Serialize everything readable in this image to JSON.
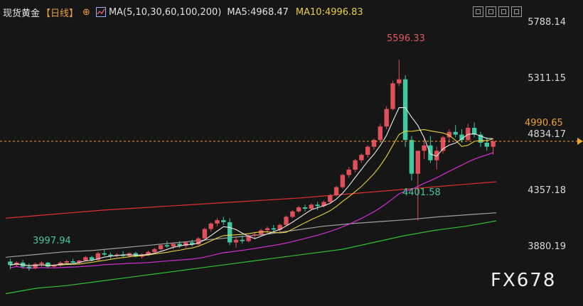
{
  "header": {
    "symbol": "现货黄金",
    "period": "【日线】",
    "ma_label": "MA(5,10,30,60,100,200)",
    "ma5": "MA5:4968.47",
    "ma10": "MA10:4996.83"
  },
  "current_price": "4990.65",
  "watermark": "FX678",
  "colors": {
    "up": "#e0505a",
    "down": "#40c8a0",
    "ma5": "#e8e8e8",
    "ma10": "#e8d040",
    "ma30": "#d030d0",
    "ma60": "#30c030",
    "ma100": "#a0a0a0",
    "ma200": "#e03030",
    "price_line": "#f0a030"
  },
  "chart_data": {
    "type": "candlestick",
    "y_ticks": [
      "5788.14",
      "5311.15",
      "4834.17",
      "4357.18",
      "3880.19"
    ],
    "ylim": [
      3800,
      5870
    ],
    "annotations": {
      "high": "5596.33",
      "low_recent": "4401.58",
      "low_early": "3997.94"
    },
    "last_price": 4990.65,
    "candles": [
      [
        4098,
        4118,
        4040,
        4072
      ],
      [
        4072,
        4100,
        4060,
        4090
      ],
      [
        4090,
        4110,
        4045,
        4060
      ],
      [
        4060,
        4085,
        4030,
        4050
      ],
      [
        4050,
        4090,
        4040,
        4080
      ],
      [
        4080,
        4100,
        4060,
        4090
      ],
      [
        4090,
        4095,
        4050,
        4060
      ],
      [
        4060,
        4080,
        4050,
        4070
      ],
      [
        4070,
        4100,
        4060,
        4090
      ],
      [
        4090,
        4110,
        4080,
        4100
      ],
      [
        4100,
        4118,
        4080,
        4090
      ],
      [
        4090,
        4110,
        4080,
        4105
      ],
      [
        4105,
        4140,
        4100,
        4130
      ],
      [
        4130,
        4140,
        4100,
        4110
      ],
      [
        4110,
        4170,
        4100,
        4160
      ],
      [
        4160,
        4185,
        4140,
        4150
      ],
      [
        4150,
        4165,
        4120,
        4140
      ],
      [
        4140,
        4160,
        4130,
        4150
      ],
      [
        4150,
        4175,
        4130,
        4140
      ],
      [
        4140,
        4165,
        4130,
        4160
      ],
      [
        4160,
        4170,
        4130,
        4135
      ],
      [
        4135,
        4160,
        4120,
        4150
      ],
      [
        4150,
        4180,
        4140,
        4170
      ],
      [
        4170,
        4200,
        4160,
        4190
      ],
      [
        4190,
        4230,
        4180,
        4220
      ],
      [
        4220,
        4250,
        4200,
        4210
      ],
      [
        4210,
        4240,
        4190,
        4230
      ],
      [
        4230,
        4250,
        4200,
        4215
      ],
      [
        4215,
        4245,
        4200,
        4240
      ],
      [
        4240,
        4260,
        4210,
        4225
      ],
      [
        4225,
        4280,
        4220,
        4270
      ],
      [
        4270,
        4350,
        4260,
        4340
      ],
      [
        4340,
        4390,
        4320,
        4380
      ],
      [
        4380,
        4420,
        4360,
        4405
      ],
      [
        4405,
        4430,
        4370,
        4390
      ],
      [
        4390,
        4420,
        4220,
        4240
      ],
      [
        4240,
        4280,
        4200,
        4260
      ],
      [
        4260,
        4290,
        4230,
        4250
      ],
      [
        4250,
        4300,
        4240,
        4290
      ],
      [
        4290,
        4320,
        4270,
        4300
      ],
      [
        4300,
        4340,
        4290,
        4330
      ],
      [
        4330,
        4360,
        4300,
        4345
      ],
      [
        4345,
        4370,
        4320,
        4335
      ],
      [
        4335,
        4380,
        4320,
        4370
      ],
      [
        4370,
        4440,
        4360,
        4430
      ],
      [
        4430,
        4480,
        4420,
        4470
      ],
      [
        4470,
        4510,
        4460,
        4500
      ],
      [
        4500,
        4520,
        4470,
        4490
      ],
      [
        4490,
        4530,
        4480,
        4520
      ],
      [
        4520,
        4540,
        4480,
        4510
      ],
      [
        4510,
        4550,
        4500,
        4540
      ],
      [
        4540,
        4600,
        4530,
        4590
      ],
      [
        4590,
        4660,
        4580,
        4650
      ],
      [
        4650,
        4750,
        4640,
        4740
      ],
      [
        4740,
        4800,
        4720,
        4780
      ],
      [
        4780,
        4860,
        4760,
        4850
      ],
      [
        4850,
        4900,
        4830,
        4890
      ],
      [
        4890,
        4960,
        4870,
        4950
      ],
      [
        4950,
        5010,
        4930,
        5000
      ],
      [
        5000,
        5120,
        4980,
        5100
      ],
      [
        5100,
        5250,
        5080,
        5230
      ],
      [
        5230,
        5440,
        5220,
        5420
      ],
      [
        5420,
        5596,
        5400,
        5450
      ],
      [
        5450,
        5480,
        4950,
        5000
      ],
      [
        5000,
        5030,
        4700,
        4750
      ],
      [
        4750,
        4900,
        4402,
        4920
      ],
      [
        4920,
        5010,
        4860,
        4960
      ],
      [
        4960,
        5030,
        4830,
        4850
      ],
      [
        4850,
        4950,
        4780,
        4920
      ],
      [
        4920,
        5030,
        4900,
        5020
      ],
      [
        5020,
        5080,
        4980,
        5060
      ],
      [
        5060,
        5110,
        5020,
        5040
      ],
      [
        5040,
        5080,
        4980,
        5000
      ],
      [
        5000,
        5120,
        4990,
        5090
      ],
      [
        5090,
        5130,
        5020,
        5040
      ],
      [
        5040,
        5060,
        4950,
        4980
      ],
      [
        4980,
        5020,
        4920,
        4950
      ],
      [
        4950,
        5000,
        4890,
        4990
      ]
    ],
    "moving_averages": {
      "ma5": [
        4060,
        4075,
        4070,
        4068,
        4072,
        4085,
        4090,
        4100,
        4110,
        4120,
        4130,
        4140,
        4150,
        4150,
        4160,
        4175,
        4190,
        4210,
        4225,
        4240,
        4260,
        4285,
        4310,
        4330,
        4345,
        4335,
        4320,
        4310,
        4300,
        4320,
        4345,
        4370,
        4400,
        4440,
        4470,
        4500,
        4530,
        4560,
        4620,
        4700,
        4780,
        4860,
        4940,
        5000,
        5080,
        5180,
        5250,
        5230,
        5150,
        5030,
        4950,
        4880,
        4880,
        4920,
        4980,
        5020,
        5040,
        5040,
        5010,
        4990,
        4975,
        4970
      ],
      "ma10": [
        4070,
        4072,
        4075,
        4078,
        4082,
        4090,
        4098,
        4106,
        4116,
        4126,
        4135,
        4145,
        4155,
        4165,
        4175,
        4188,
        4202,
        4218,
        4235,
        4252,
        4268,
        4285,
        4300,
        4312,
        4324,
        4330,
        4338,
        4350,
        4365,
        4385,
        4410,
        4440,
        4470,
        4500,
        4540,
        4590,
        4650,
        4720,
        4790,
        4850,
        4900,
        4930,
        4950,
        4970,
        4990,
        5010,
        5020,
        5015,
        5005,
        4997
      ]
    },
    "ma30_y": [
      3805,
      3835,
      3860,
      3880,
      3890,
      3920,
      3960,
      4000,
      4040,
      4100,
      4160,
      4210,
      4245,
      4260,
      4275,
      4290
    ],
    "ma60_y": [
      3860,
      3900,
      3920,
      3950,
      3980,
      4010,
      4040,
      4070,
      4100,
      4130,
      4160,
      4190,
      4240,
      4290,
      4330,
      4360,
      4400
    ],
    "ma100_y": [
      4130,
      4150,
      4170,
      4180,
      4200,
      4220,
      4240,
      4260,
      4280,
      4300,
      4330,
      4360,
      4380,
      4395,
      4410,
      4430,
      4445,
      4460
    ],
    "ma200_y": [
      4420,
      4440,
      4460,
      4480,
      4495,
      4510,
      4525,
      4540,
      4555,
      4570,
      4590,
      4610,
      4630,
      4650,
      4670,
      4690
    ]
  }
}
